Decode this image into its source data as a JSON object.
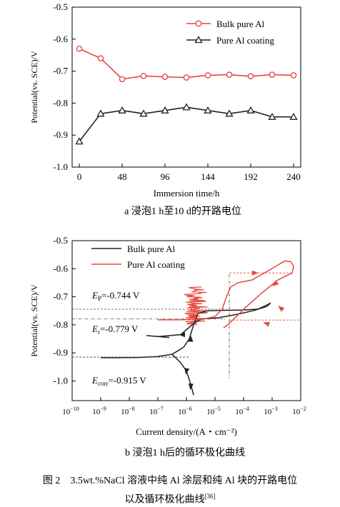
{
  "chart_data": [
    {
      "type": "line",
      "subcaption": "a  浸泡1 h至10 d的开路电位",
      "xlabel": "Immersion time/h",
      "ylabel": "Potential(vs. SCE)/V",
      "xlim": [
        -8,
        248
      ],
      "ylim": [
        -1.0,
        -0.5
      ],
      "xticks": [
        0,
        48,
        96,
        144,
        192,
        240
      ],
      "yticks": [
        -0.5,
        -0.6,
        -0.7,
        -0.8,
        -0.9,
        -1.0
      ],
      "ytick_labels": [
        "-0.5",
        "-0.6",
        "-0.7",
        "-0.8",
        "-0.9",
        "-1.0"
      ],
      "legend": "top-right",
      "series": [
        {
          "name": "Bulk pure Al",
          "color": "#e8473f",
          "marker": "circle",
          "x": [
            0,
            24,
            48,
            72,
            96,
            120,
            144,
            168,
            192,
            216,
            240
          ],
          "y": [
            -0.63,
            -0.66,
            -0.725,
            -0.715,
            -0.718,
            -0.72,
            -0.713,
            -0.711,
            -0.716,
            -0.711,
            -0.713
          ]
        },
        {
          "name": "Pure Al coating",
          "color": "#222222",
          "marker": "triangle",
          "x": [
            0,
            24,
            48,
            72,
            96,
            120,
            144,
            168,
            192,
            216,
            240
          ],
          "y": [
            -0.92,
            -0.833,
            -0.823,
            -0.833,
            -0.823,
            -0.813,
            -0.823,
            -0.833,
            -0.823,
            -0.843,
            -0.843
          ]
        }
      ]
    },
    {
      "type": "line",
      "subcaption": "b  浸泡1 h后的循环极化曲线",
      "xlabel": "Current density/(A・cm⁻²)",
      "ylabel": "Potential(vs. SCE)/V",
      "xscale": "log",
      "xlim": [
        1e-10,
        0.01
      ],
      "ylim": [
        -1.07,
        -0.5
      ],
      "xticks": [
        -10,
        -9,
        -8,
        -7,
        -6,
        -5,
        -4,
        -3,
        -2
      ],
      "yticks": [
        -0.5,
        -0.6,
        -0.7,
        -0.8,
        -0.9,
        -1.0
      ],
      "ytick_labels": [
        "-0.5",
        "-0.6",
        "-0.7",
        "-0.8",
        "-0.9",
        "-1.0"
      ],
      "legend": "top-left",
      "annotations": {
        "ep": "E",
        "ep_sub": "P",
        "ep_val": "=-0.744 V",
        "er": "E",
        "er_sub": "r",
        "er_val": "=-0.779 V",
        "ec": "E",
        "ec_sub": "corr",
        "ec_val": "=-0.915 V"
      },
      "reference_lines": [
        -0.744,
        -0.779,
        -0.915
      ],
      "series": [
        {
          "name": "Bulk pure Al",
          "color": "#222222",
          "curve": [
            [
              -9.0,
              -0.917
            ],
            [
              -8.3,
              -0.917
            ],
            [
              -7.6,
              -0.916
            ],
            [
              -7.0,
              -0.913
            ],
            [
              -6.5,
              -0.905
            ],
            [
              -6.1,
              -0.88
            ],
            [
              -5.9,
              -0.85
            ],
            [
              -5.75,
              -0.8
            ],
            [
              -5.6,
              -0.76
            ],
            [
              -5.3,
              -0.75
            ],
            [
              -4.6,
              -0.748
            ],
            [
              -4.0,
              -0.747
            ],
            [
              -3.5,
              -0.744
            ],
            [
              -3.2,
              -0.73
            ],
            [
              -3.05,
              -0.722
            ],
            [
              -3.2,
              -0.735
            ],
            [
              -3.6,
              -0.748
            ],
            [
              -4.2,
              -0.762
            ],
            [
              -4.9,
              -0.775
            ],
            [
              -5.5,
              -0.779
            ],
            [
              -5.8,
              -0.8
            ],
            [
              -6.2,
              -0.835
            ],
            [
              -7.0,
              -0.842
            ],
            [
              -7.4,
              -0.838
            ],
            [
              -6.6,
              -0.845
            ]
          ],
          "cathodic": [
            [
              -6.5,
              -0.905
            ],
            [
              -6.2,
              -0.935
            ],
            [
              -6.0,
              -0.965
            ],
            [
              -5.9,
              -0.995
            ],
            [
              -5.8,
              -1.03
            ],
            [
              -5.75,
              -1.05
            ]
          ]
        },
        {
          "name": "Pure Al coating",
          "color": "#e8473f",
          "curve": [
            [
              -7.0,
              -0.782
            ],
            [
              -6.3,
              -0.782
            ],
            [
              -5.8,
              -0.781
            ],
            [
              -5.4,
              -0.78
            ],
            [
              -5.0,
              -0.77
            ],
            [
              -4.75,
              -0.745
            ],
            [
              -4.6,
              -0.7
            ],
            [
              -4.45,
              -0.665
            ],
            [
              -4.2,
              -0.65
            ],
            [
              -3.7,
              -0.64
            ],
            [
              -3.1,
              -0.605
            ],
            [
              -2.55,
              -0.572
            ],
            [
              -2.35,
              -0.575
            ],
            [
              -2.25,
              -0.59
            ],
            [
              -2.3,
              -0.615
            ],
            [
              -2.8,
              -0.64
            ],
            [
              -3.4,
              -0.69
            ],
            [
              -3.9,
              -0.735
            ],
            [
              -4.3,
              -0.775
            ],
            [
              -4.55,
              -0.8
            ],
            [
              -4.7,
              -0.81
            ]
          ],
          "noise_band": {
            "x_range": [
              -6.1,
              -5.25
            ],
            "y_range": [
              -0.8,
              -0.665
            ]
          }
        }
      ]
    }
  ],
  "figure_caption": {
    "line1": "图 2　3.5wt.%NaCl 溶液中纯 Al 涂层和纯 Al 块的开路电位",
    "line2": "以及循环极化曲线",
    "ref": "[36]"
  }
}
